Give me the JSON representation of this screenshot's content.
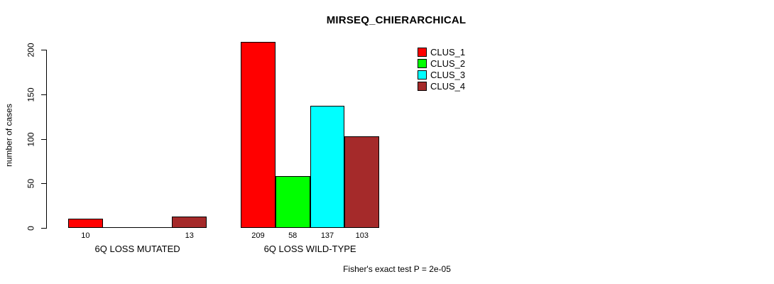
{
  "title": "MIRSEQ_CHIERARCHICAL",
  "y_axis": {
    "label": "number of cases",
    "ticks": [
      "0",
      "50",
      "100",
      "150",
      "200"
    ]
  },
  "footer": "Fisher's exact test P = 2e-05",
  "legend": {
    "items": [
      {
        "label": "CLUS_1",
        "color": "#FF0000"
      },
      {
        "label": "CLUS_2",
        "color": "#00FF00"
      },
      {
        "label": "CLUS_3",
        "color": "#00FFFF"
      },
      {
        "label": "CLUS_4",
        "color": "#A52A2A"
      }
    ]
  },
  "chart_data": {
    "type": "bar",
    "title": "MIRSEQ_CHIERARCHICAL",
    "xlabel": "",
    "ylabel": "number of cases",
    "ylim": [
      0,
      200
    ],
    "yticks": [
      0,
      50,
      100,
      150,
      200
    ],
    "grid": false,
    "legend_position": "top-right",
    "categories": [
      "6Q LOSS MUTATED",
      "6Q LOSS WILD-TYPE"
    ],
    "series": [
      {
        "name": "CLUS_1",
        "color": "#FF0000",
        "values": [
          10,
          209
        ]
      },
      {
        "name": "CLUS_2",
        "color": "#00FF00",
        "values": [
          0,
          58
        ]
      },
      {
        "name": "CLUS_3",
        "color": "#00FFFF",
        "values": [
          0,
          137
        ]
      },
      {
        "name": "CLUS_4",
        "color": "#A52A2A",
        "values": [
          13,
          103
        ]
      }
    ],
    "bar_value_labels": [
      [
        "10",
        "",
        "",
        "13"
      ],
      [
        "209",
        "58",
        "137",
        "103"
      ]
    ],
    "annotation": "Fisher's exact test P = 2e-05"
  }
}
